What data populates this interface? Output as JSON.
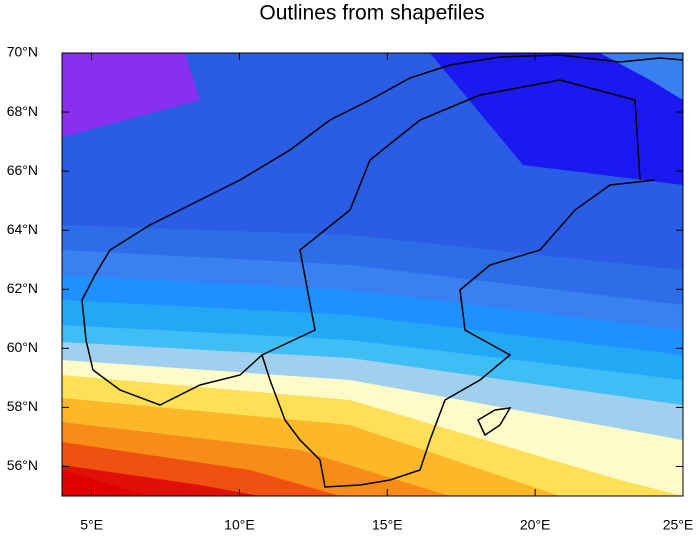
{
  "title": "Outlines from shapefiles",
  "map": {
    "xlim": [
      4,
      25
    ],
    "ylim": [
      55,
      70
    ],
    "xticks": [
      {
        "value": 5,
        "label": "5°E"
      },
      {
        "value": 10,
        "label": "10°E"
      },
      {
        "value": 15,
        "label": "15°E"
      },
      {
        "value": 20,
        "label": "20°E"
      },
      {
        "value": 25,
        "label": "25°E"
      }
    ],
    "yticks": [
      {
        "value": 56,
        "label": "56°N"
      },
      {
        "value": 58,
        "label": "58°N"
      },
      {
        "value": 60,
        "label": "60°N"
      },
      {
        "value": 62,
        "label": "62°N"
      },
      {
        "value": 64,
        "label": "64°N"
      },
      {
        "value": 66,
        "label": "66°N"
      },
      {
        "value": 68,
        "label": "68°N"
      },
      {
        "value": 70,
        "label": "70°N"
      }
    ]
  }
}
